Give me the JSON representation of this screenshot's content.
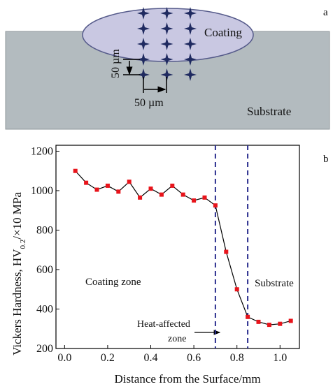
{
  "diagram": {
    "panel": "a",
    "coating": "Coating",
    "substrate": "Substrate",
    "vertical_spacing": "50 µm",
    "horizontal_spacing": "50 µm"
  },
  "chart_data": {
    "type": "line",
    "panel": "b",
    "xlabel": "Distance from the Surface/mm",
    "ylabel": "Vickers Hardness, HV",
    "ylabel_sub": "0.2",
    "ylabel_rest": "/×10 MPa",
    "x": [
      0.05,
      0.1,
      0.15,
      0.2,
      0.25,
      0.3,
      0.35,
      0.4,
      0.45,
      0.5,
      0.55,
      0.6,
      0.65,
      0.7,
      0.75,
      0.8,
      0.85,
      0.9,
      0.95,
      1.0,
      1.05
    ],
    "series": [
      {
        "color": "#e8141b",
        "values": [
          1100,
          1040,
          1005,
          1025,
          995,
          1045,
          965,
          1010,
          980,
          1025,
          980,
          950,
          965,
          925,
          690,
          500,
          360,
          335,
          320,
          325,
          340
        ]
      }
    ],
    "xlim": [
      -0.04,
      1.09
    ],
    "ylim": [
      200,
      1230
    ],
    "xticks": [
      {
        "value": 0,
        "label": "0.0"
      },
      0.2,
      0.4,
      0.6,
      0.8,
      {
        "value": 1,
        "label": "1.0"
      }
    ],
    "yticks": [
      200,
      400,
      600,
      800,
      1000,
      1200
    ],
    "vlines": [
      0.7,
      0.85
    ],
    "vline_color": "#2b2f8f",
    "annotations": {
      "coating_zone": "Coating zone",
      "substrate": "Substrate",
      "haz_line1": "Heat-affected",
      "haz_line2": "zone"
    }
  }
}
